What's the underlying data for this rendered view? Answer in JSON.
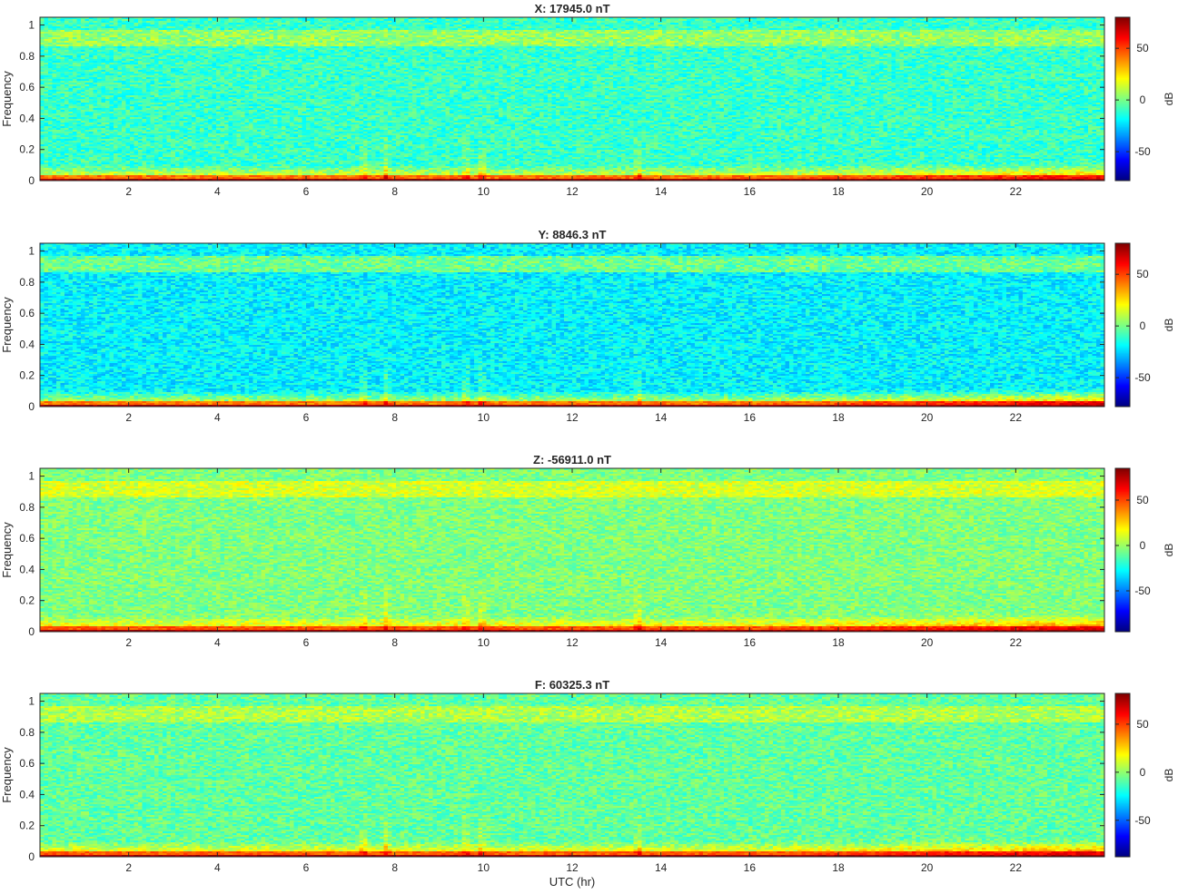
{
  "chart_data": [
    {
      "type": "heatmap",
      "title": "X: 17945.0 nT",
      "ylabel": "Frequency",
      "xlabel": "",
      "xlim": [
        0,
        24
      ],
      "ylim": [
        0,
        1.05
      ],
      "x_ticks": [
        "2",
        "4",
        "6",
        "8",
        "10",
        "12",
        "14",
        "16",
        "18",
        "20",
        "22"
      ],
      "y_ticks": [
        "0",
        "0.2",
        "0.4",
        "0.6",
        "0.8",
        "1"
      ],
      "colorbar": {
        "label": "dB",
        "ticks": [
          "50",
          "0",
          "-50"
        ],
        "tick_values": [
          50,
          0,
          -50
        ],
        "range": [
          -78,
          80
        ]
      },
      "colormap": "jet",
      "background_db": -10,
      "top_band_db": 8,
      "low_freq_db": 40,
      "evening_rise_db": 10
    },
    {
      "type": "heatmap",
      "title": "Y: 8846.3 nT",
      "ylabel": "Frequency",
      "xlabel": "",
      "xlim": [
        0,
        24
      ],
      "ylim": [
        0,
        1.05
      ],
      "x_ticks": [
        "2",
        "4",
        "6",
        "8",
        "10",
        "12",
        "14",
        "16",
        "18",
        "20",
        "22"
      ],
      "y_ticks": [
        "0",
        "0.2",
        "0.4",
        "0.6",
        "0.8",
        "1"
      ],
      "colorbar": {
        "label": "dB",
        "ticks": [
          "50",
          "0",
          "-50"
        ],
        "tick_values": [
          50,
          0,
          -50
        ],
        "range": [
          -78,
          80
        ]
      },
      "colormap": "jet",
      "background_db": -20,
      "top_band_db": 2,
      "low_freq_db": 38,
      "evening_rise_db": 14
    },
    {
      "type": "heatmap",
      "title": "Z: -56911.0 nT",
      "ylabel": "Frequency",
      "xlabel": "",
      "xlim": [
        0,
        24
      ],
      "ylim": [
        0,
        1.05
      ],
      "x_ticks": [
        "2",
        "4",
        "6",
        "8",
        "10",
        "12",
        "14",
        "16",
        "18",
        "20",
        "22"
      ],
      "y_ticks": [
        "0",
        "0.2",
        "0.4",
        "0.6",
        "0.8",
        "1"
      ],
      "colorbar": {
        "label": "dB",
        "ticks": [
          "50",
          "0",
          "-50"
        ],
        "tick_values": [
          50,
          0,
          -50
        ],
        "range": [
          -95,
          85
        ]
      },
      "colormap": "jet",
      "background_db": -5,
      "top_band_db": 14,
      "low_freq_db": 45,
      "evening_rise_db": 12
    },
    {
      "type": "heatmap",
      "title": "F: 60325.3 nT",
      "ylabel": "Frequency",
      "xlabel": "UTC (hr)",
      "xlim": [
        0,
        24
      ],
      "ylim": [
        0,
        1.05
      ],
      "x_ticks": [
        "2",
        "4",
        "6",
        "8",
        "10",
        "12",
        "14",
        "16",
        "18",
        "20",
        "22"
      ],
      "y_ticks": [
        "0",
        "0.2",
        "0.4",
        "0.6",
        "0.8",
        "1"
      ],
      "colorbar": {
        "label": "dB",
        "ticks": [
          "50",
          "0",
          "-50"
        ],
        "tick_values": [
          50,
          0,
          -50
        ],
        "range": [
          -88,
          82
        ]
      },
      "colormap": "jet",
      "background_db": -8,
      "top_band_db": 8,
      "low_freq_db": 42,
      "evening_rise_db": 12
    }
  ]
}
